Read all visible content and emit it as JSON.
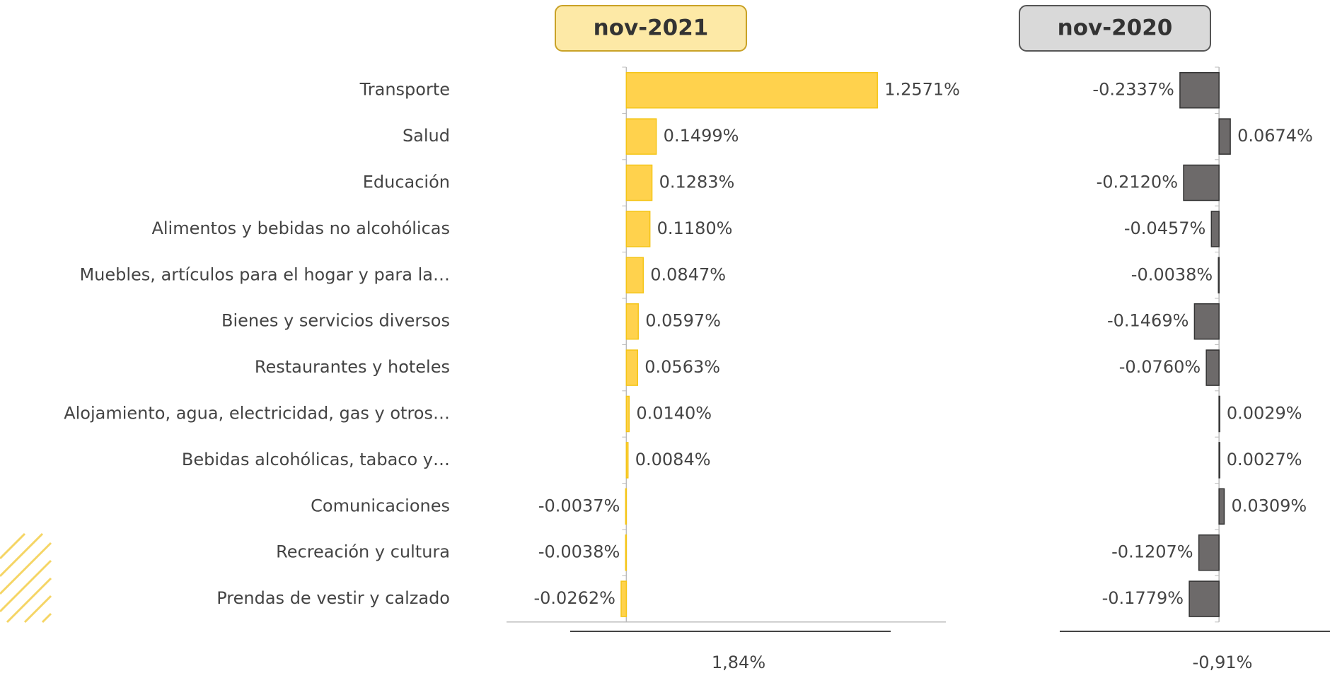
{
  "chart_data": [
    {
      "type": "bar",
      "orientation": "horizontal",
      "title": "nov-2021",
      "categories": [
        "Transporte",
        "Salud",
        "Educación",
        "Alimentos y bebidas no alcohólicas",
        "Muebles, artículos para el hogar y para la…",
        "Bienes y servicios diversos",
        "Restaurantes y hoteles",
        "Alojamiento, agua, electricidad, gas y otros…",
        "Bebidas alcohólicas, tabaco y…",
        "Comunicaciones",
        "Recreación y cultura",
        "Prendas de vestir y calzado"
      ],
      "values": [
        1.2571,
        0.1499,
        0.1283,
        0.118,
        0.0847,
        0.0597,
        0.0563,
        0.014,
        0.0084,
        -0.0037,
        -0.0038,
        -0.0262
      ],
      "value_labels": [
        "1.2571%",
        "0.1499%",
        "0.1283%",
        "0.1180%",
        "0.0847%",
        "0.0597%",
        "0.0563%",
        "0.0140%",
        "0.0084%",
        "-0.0037%",
        "-0.0038%",
        "-0.0262%"
      ],
      "color": "#ffd24d",
      "xlim": [
        -0.6,
        1.6
      ],
      "total": "1,84%"
    },
    {
      "type": "bar",
      "orientation": "horizontal",
      "title": "nov-2020",
      "values": [
        -0.2337,
        0.0674,
        -0.212,
        -0.0457,
        -0.0038,
        -0.1469,
        -0.076,
        0.0029,
        0.0027,
        0.0309,
        -0.1207,
        -0.1779
      ],
      "value_labels": [
        "-0.2337%",
        "0.0674%",
        "-0.2120%",
        "-0.0457%",
        "-0.0038%",
        "-0.1469%",
        "-0.0760%",
        "0.0029%",
        "0.0027%",
        "0.0309%",
        "-0.1207%",
        "-0.1779%"
      ],
      "color": "#6d6a6a",
      "xlim": [
        -0.8,
        0.6
      ],
      "total": "-0,91%"
    }
  ]
}
